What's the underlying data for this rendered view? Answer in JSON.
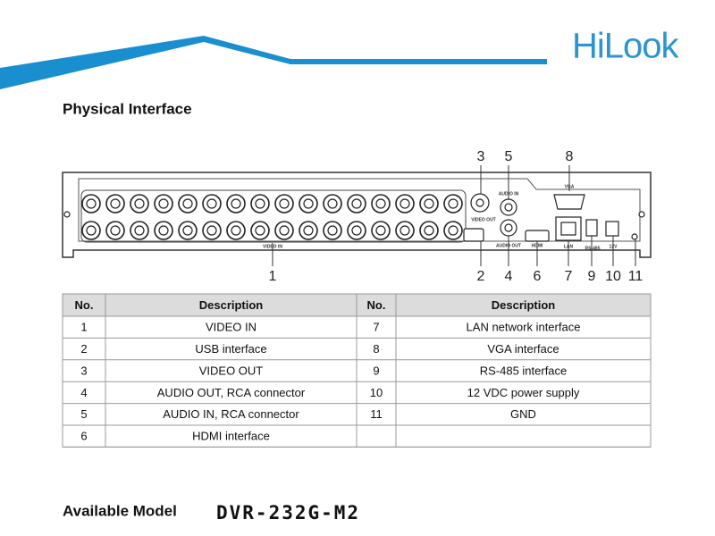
{
  "header": {
    "logo": "HiLook"
  },
  "section_title": "Physical Interface",
  "panel": {
    "callouts": [
      "1",
      "2",
      "3",
      "4",
      "5",
      "6",
      "7",
      "8",
      "9",
      "10",
      "11"
    ],
    "port_labels": [
      "VIDEO IN",
      "VIDEO OUT",
      "AUDIO IN",
      "AUDIO OUT",
      "HDMI",
      "LAN",
      "RS-485",
      "12V",
      "VGA"
    ]
  },
  "table": {
    "columns": [
      "No.",
      "Description",
      "No.",
      "Description"
    ],
    "rows": [
      [
        "1",
        "VIDEO IN",
        "7",
        "LAN network interface"
      ],
      [
        "2",
        "USB interface",
        "8",
        "VGA interface"
      ],
      [
        "3",
        "VIDEO OUT",
        "9",
        "RS-485 interface"
      ],
      [
        "4",
        "AUDIO OUT, RCA connector",
        "10",
        "12 VDC power supply"
      ],
      [
        "5",
        "AUDIO IN, RCA connector",
        "11",
        "GND"
      ],
      [
        "6",
        "HDMI interface"
      ]
    ]
  },
  "footer": {
    "label": "Available Model",
    "model": "DVR-232G-M2"
  }
}
